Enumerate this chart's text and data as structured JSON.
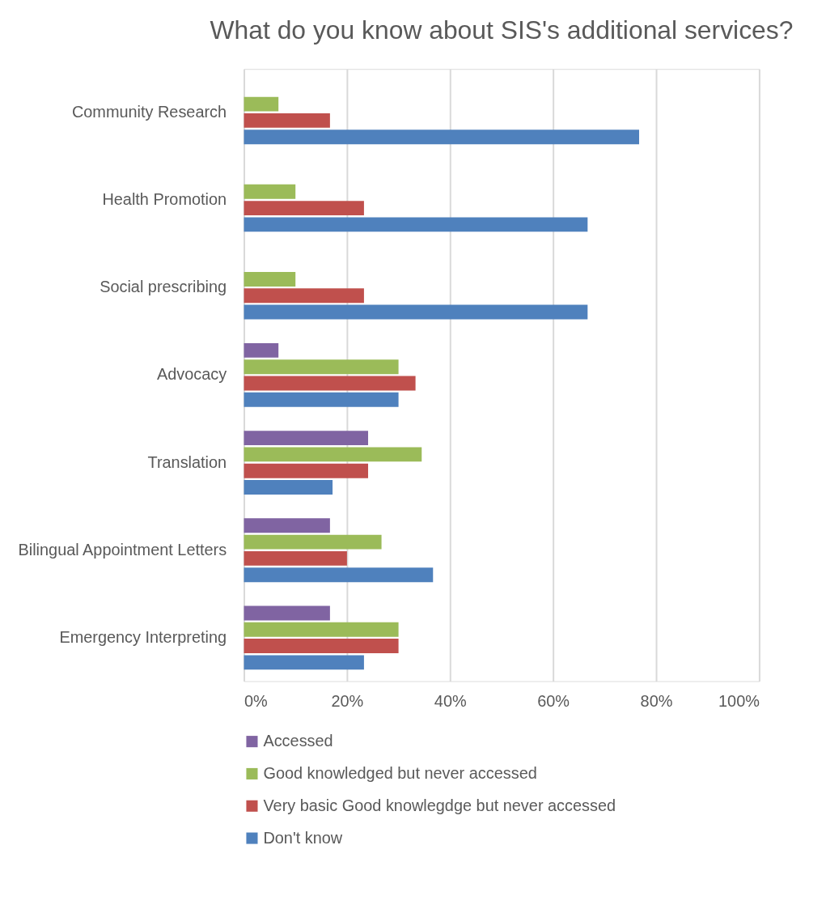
{
  "chart_data": {
    "type": "bar",
    "orientation": "horizontal",
    "title": "What do you know about SIS's additional services?",
    "categories": [
      "Community Research",
      "Health Promotion",
      "Social  prescribing",
      "Advocacy",
      "Translation",
      "Bilingual Appointment Letters",
      "Emergency Interpreting"
    ],
    "series": [
      {
        "name": "Accessed",
        "color": "#8064a2",
        "values": [
          null,
          null,
          null,
          6.7,
          24.1,
          16.7,
          16.7
        ]
      },
      {
        "name": "Good knowledged but never accessed",
        "color": "#9bbb59",
        "values": [
          6.7,
          10,
          10,
          30,
          34.5,
          26.7,
          30
        ]
      },
      {
        "name": "Very basic Good knowlegdge but never accessed",
        "color": "#c0504d",
        "values": [
          16.7,
          23.3,
          23.3,
          33.3,
          24.1,
          20,
          30
        ]
      },
      {
        "name": "Don't know",
        "color": "#4f81bd",
        "values": [
          76.7,
          66.7,
          66.7,
          30,
          17.2,
          36.7,
          23.3
        ]
      }
    ],
    "xlim": [
      0,
      100
    ],
    "xticks": [
      {
        "value": 0,
        "label": "0%"
      },
      {
        "value": 20,
        "label": "20%"
      },
      {
        "value": 40,
        "label": "40%"
      },
      {
        "value": 60,
        "label": "60%"
      },
      {
        "value": 80,
        "label": "80%"
      },
      {
        "value": 100,
        "label": "100%"
      }
    ],
    "grid": "x",
    "legend": "bottom"
  }
}
